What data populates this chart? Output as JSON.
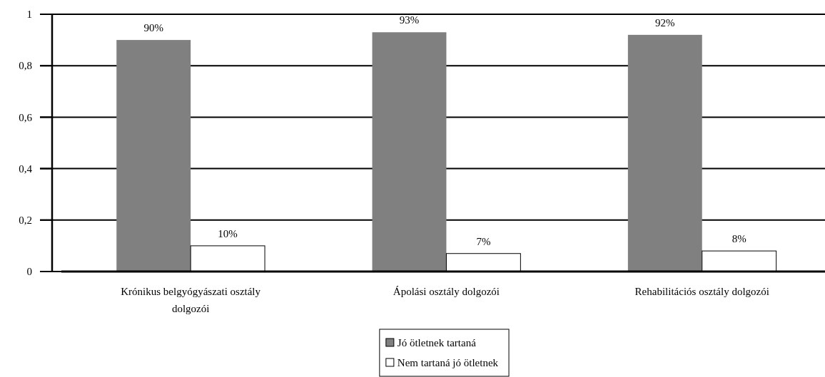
{
  "chart_data": {
    "type": "bar",
    "categories": [
      "Krónikus belgyógyászati osztály dolgozói",
      "Ápolási osztály dolgozói",
      "Rehabilitációs osztály dolgozói"
    ],
    "series": [
      {
        "name": "Jó ötletnek tartaná",
        "color": "#808080",
        "values": [
          0.9,
          0.93,
          0.92
        ],
        "value_labels": [
          "90%",
          "93%",
          "92%"
        ]
      },
      {
        "name": "Nem tartaná jó ötletnek",
        "color": "#ffffff",
        "values": [
          0.1,
          0.07,
          0.08
        ],
        "value_labels": [
          "10%",
          "7%",
          "8%"
        ]
      }
    ],
    "ylim": [
      0,
      1
    ],
    "yticks": [
      0,
      {
        "value": 0.2,
        "label": "0,2"
      },
      {
        "value": 0.4,
        "label": "0,4"
      },
      {
        "value": 0.6,
        "label": "0,6"
      },
      {
        "value": 0.8,
        "label": "0,8"
      },
      1
    ],
    "grid": "y",
    "legend": "bottom"
  }
}
